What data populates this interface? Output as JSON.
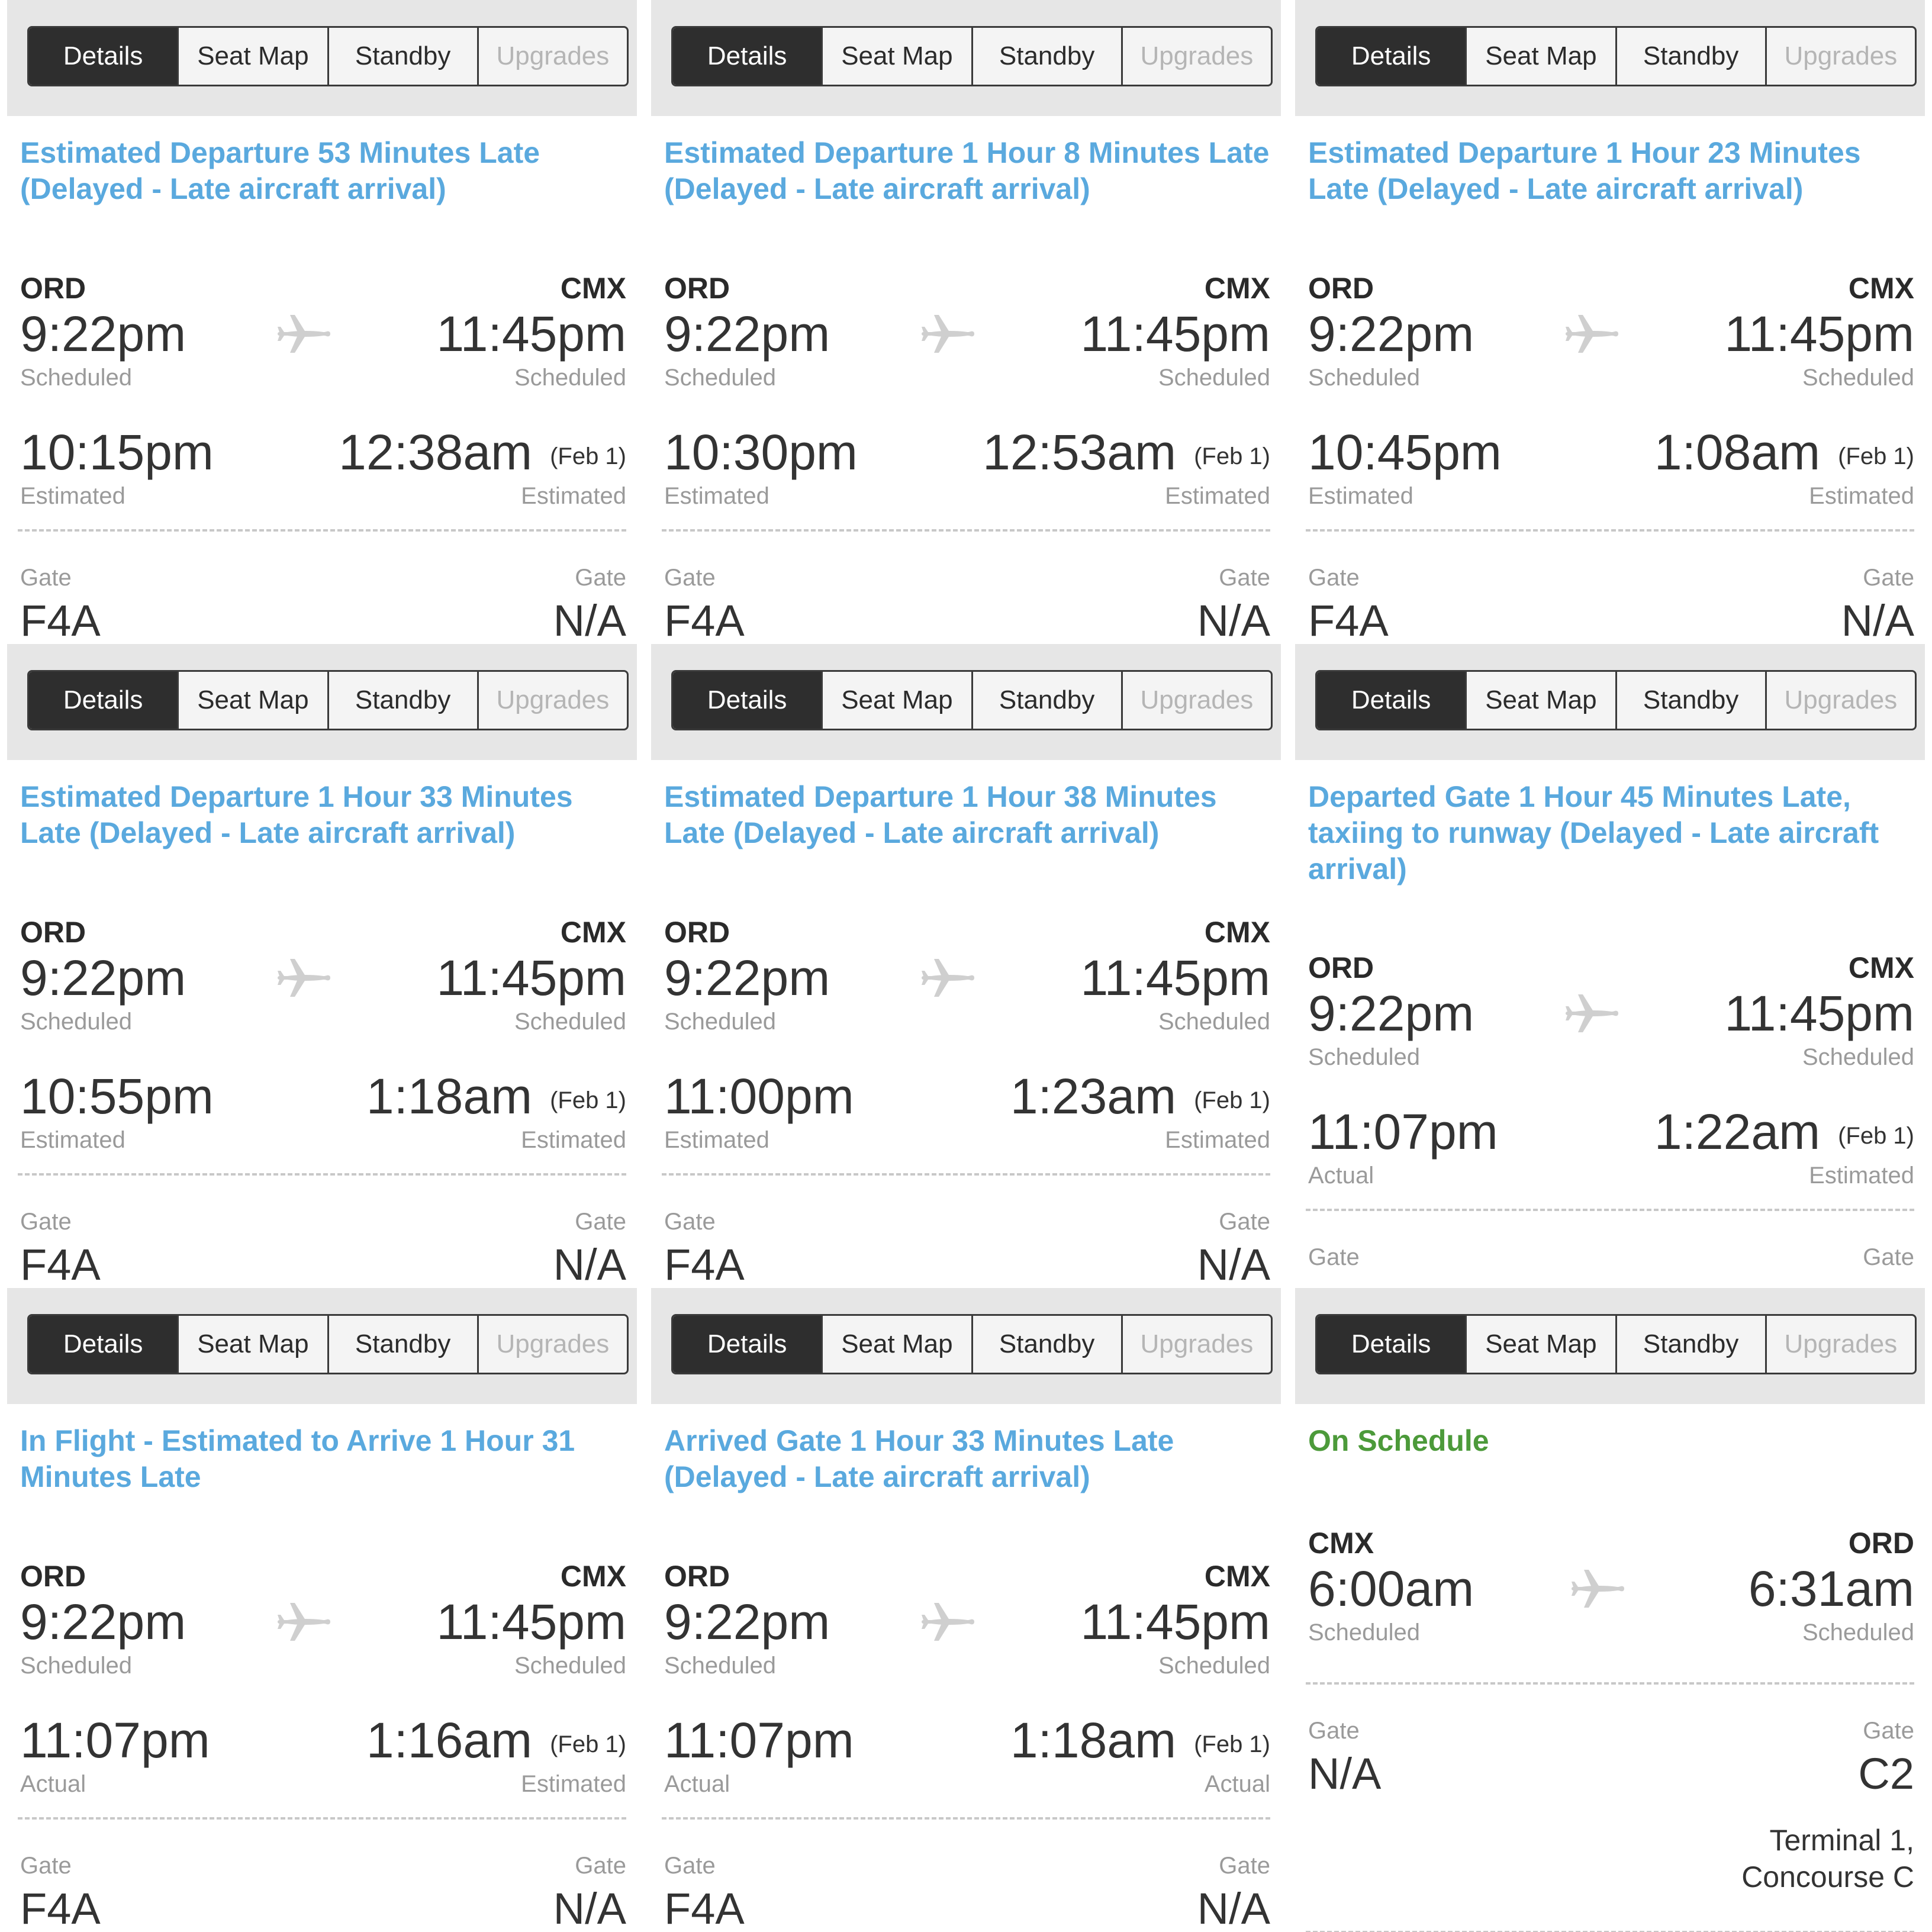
{
  "tabs": [
    "Details",
    "Seat Map",
    "Standby",
    "Upgrades"
  ],
  "labels": {
    "scheduled": "Scheduled",
    "estimated": "Estimated",
    "actual": "Actual",
    "gate": "Gate"
  },
  "colors": {
    "delayed_status": "#5aa9de",
    "on_schedule_status": "#4c9a3a",
    "active_tab": "#2e2e2e",
    "tab_bar_bg": "#e6e6e6"
  },
  "panels": [
    {
      "status": "Estimated Departure 53 Minutes Late (Delayed - Late aircraft arrival)",
      "from": "ORD",
      "to": "CMX",
      "dep_sched": "9:22pm",
      "arr_sched": "11:45pm",
      "dep_est": "10:15pm",
      "arr_est": "12:38am",
      "arr_note": "(Feb 1)",
      "dep_est_label": "Estimated",
      "arr_est_label": "Estimated",
      "gate_dep": "F4A",
      "gate_arr": "N/A"
    },
    {
      "status": "Estimated Departure 1 Hour 8 Minutes Late (Delayed - Late aircraft arrival)",
      "from": "ORD",
      "to": "CMX",
      "dep_sched": "9:22pm",
      "arr_sched": "11:45pm",
      "dep_est": "10:30pm",
      "arr_est": "12:53am",
      "arr_note": "(Feb 1)",
      "dep_est_label": "Estimated",
      "arr_est_label": "Estimated",
      "gate_dep": "F4A",
      "gate_arr": "N/A"
    },
    {
      "status": "Estimated Departure 1 Hour 23 Minutes Late (Delayed - Late aircraft arrival)",
      "from": "ORD",
      "to": "CMX",
      "dep_sched": "9:22pm",
      "arr_sched": "11:45pm",
      "dep_est": "10:45pm",
      "arr_est": "1:08am",
      "arr_note": "(Feb 1)",
      "dep_est_label": "Estimated",
      "arr_est_label": "Estimated",
      "gate_dep": "F4A",
      "gate_arr": "N/A"
    },
    {
      "status": "Estimated Departure 1 Hour 33 Minutes Late (Delayed - Late aircraft arrival)",
      "from": "ORD",
      "to": "CMX",
      "dep_sched": "9:22pm",
      "arr_sched": "11:45pm",
      "dep_est": "10:55pm",
      "arr_est": "1:18am",
      "arr_note": "(Feb 1)",
      "dep_est_label": "Estimated",
      "arr_est_label": "Estimated",
      "gate_dep": "F4A",
      "gate_arr": "N/A"
    },
    {
      "status": "Estimated Departure 1 Hour 38 Minutes Late (Delayed - Late aircraft arrival)",
      "from": "ORD",
      "to": "CMX",
      "dep_sched": "9:22pm",
      "arr_sched": "11:45pm",
      "dep_est": "11:00pm",
      "arr_est": "1:23am",
      "arr_note": "(Feb 1)",
      "dep_est_label": "Estimated",
      "arr_est_label": "Estimated",
      "gate_dep": "F4A",
      "gate_arr": "N/A"
    },
    {
      "status": "Departed Gate 1 Hour 45 Minutes Late, taxiing to runway (Delayed - Late aircraft arrival)",
      "from": "ORD",
      "to": "CMX",
      "dep_sched": "9:22pm",
      "arr_sched": "11:45pm",
      "dep_est": "11:07pm",
      "arr_est": "1:22am",
      "arr_note": "(Feb 1)",
      "dep_est_label": "Actual",
      "arr_est_label": "Estimated",
      "gate_dep": "",
      "gate_arr": ""
    },
    {
      "status": "In Flight - Estimated to Arrive 1 Hour 31 Minutes Late",
      "from": "ORD",
      "to": "CMX",
      "dep_sched": "9:22pm",
      "arr_sched": "11:45pm",
      "dep_est": "11:07pm",
      "arr_est": "1:16am",
      "arr_note": "(Feb 1)",
      "dep_est_label": "Actual",
      "arr_est_label": "Estimated",
      "gate_dep": "F4A",
      "gate_arr": "N/A"
    },
    {
      "status": "Arrived Gate 1 Hour 33 Minutes Late (Delayed - Late aircraft arrival)",
      "from": "ORD",
      "to": "CMX",
      "dep_sched": "9:22pm",
      "arr_sched": "11:45pm",
      "dep_est": "11:07pm",
      "arr_est": "1:18am",
      "arr_note": "(Feb 1)",
      "dep_est_label": "Actual",
      "arr_est_label": "Actual",
      "gate_dep": "F4A",
      "gate_arr": "N/A"
    },
    {
      "status": "On Schedule",
      "from": "CMX",
      "to": "ORD",
      "dep_sched": "6:00am",
      "arr_sched": "6:31am",
      "gate_dep": "N/A",
      "gate_arr": "C2",
      "terminal": [
        "Terminal 1,",
        "Concourse C"
      ]
    }
  ]
}
